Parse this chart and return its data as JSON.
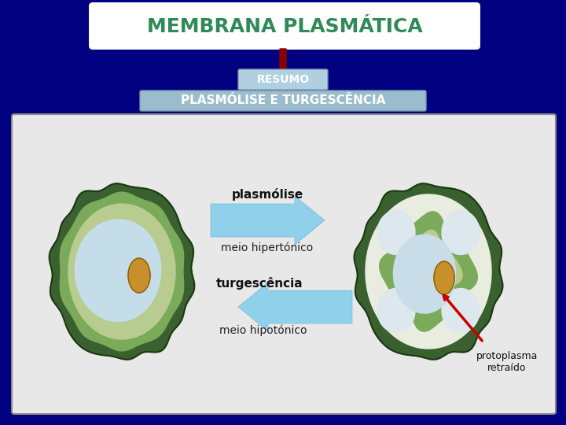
{
  "bg_color": "#000080",
  "title_text": "MEMBRANA PLASMÁTICA",
  "title_bg": "#ffffff",
  "title_fg": "#2e8b57",
  "title_fontsize": 18,
  "resumo_text": "RESUMO",
  "resumo_bg": "#b0cfe0",
  "resumo_fg": "#ffffff",
  "resumo_fontsize": 10,
  "subtitle_text": "PLASMÓLISE E TURGESCÊNCIA",
  "subtitle_bg": "#9bbccc",
  "subtitle_fg": "#ffffff",
  "subtitle_fontsize": 11,
  "panel_bg": "#e8e8e8",
  "arrow_down_color": "#8b0000",
  "plasmolise_label": "plasmólise",
  "meio_hiper_label": "meio hipertónico",
  "turgescencia_label": "turgescência",
  "meio_hipo_label": "meio hipotónico",
  "protoplasma_label": "protoplasma\nretraído",
  "blue_arrow_color": "#87ceeb",
  "red_arrow_color": "#cc0000",
  "cell_outer_dark": "#4a6e3a",
  "cell_outer_edge": "#2a4a1a",
  "cell_inner_green": "#8aaa70",
  "cell_vacuole": "#c8dde8",
  "cell_nucleus": "#c8902a",
  "cell_nucleus_edge": "#8a6010"
}
